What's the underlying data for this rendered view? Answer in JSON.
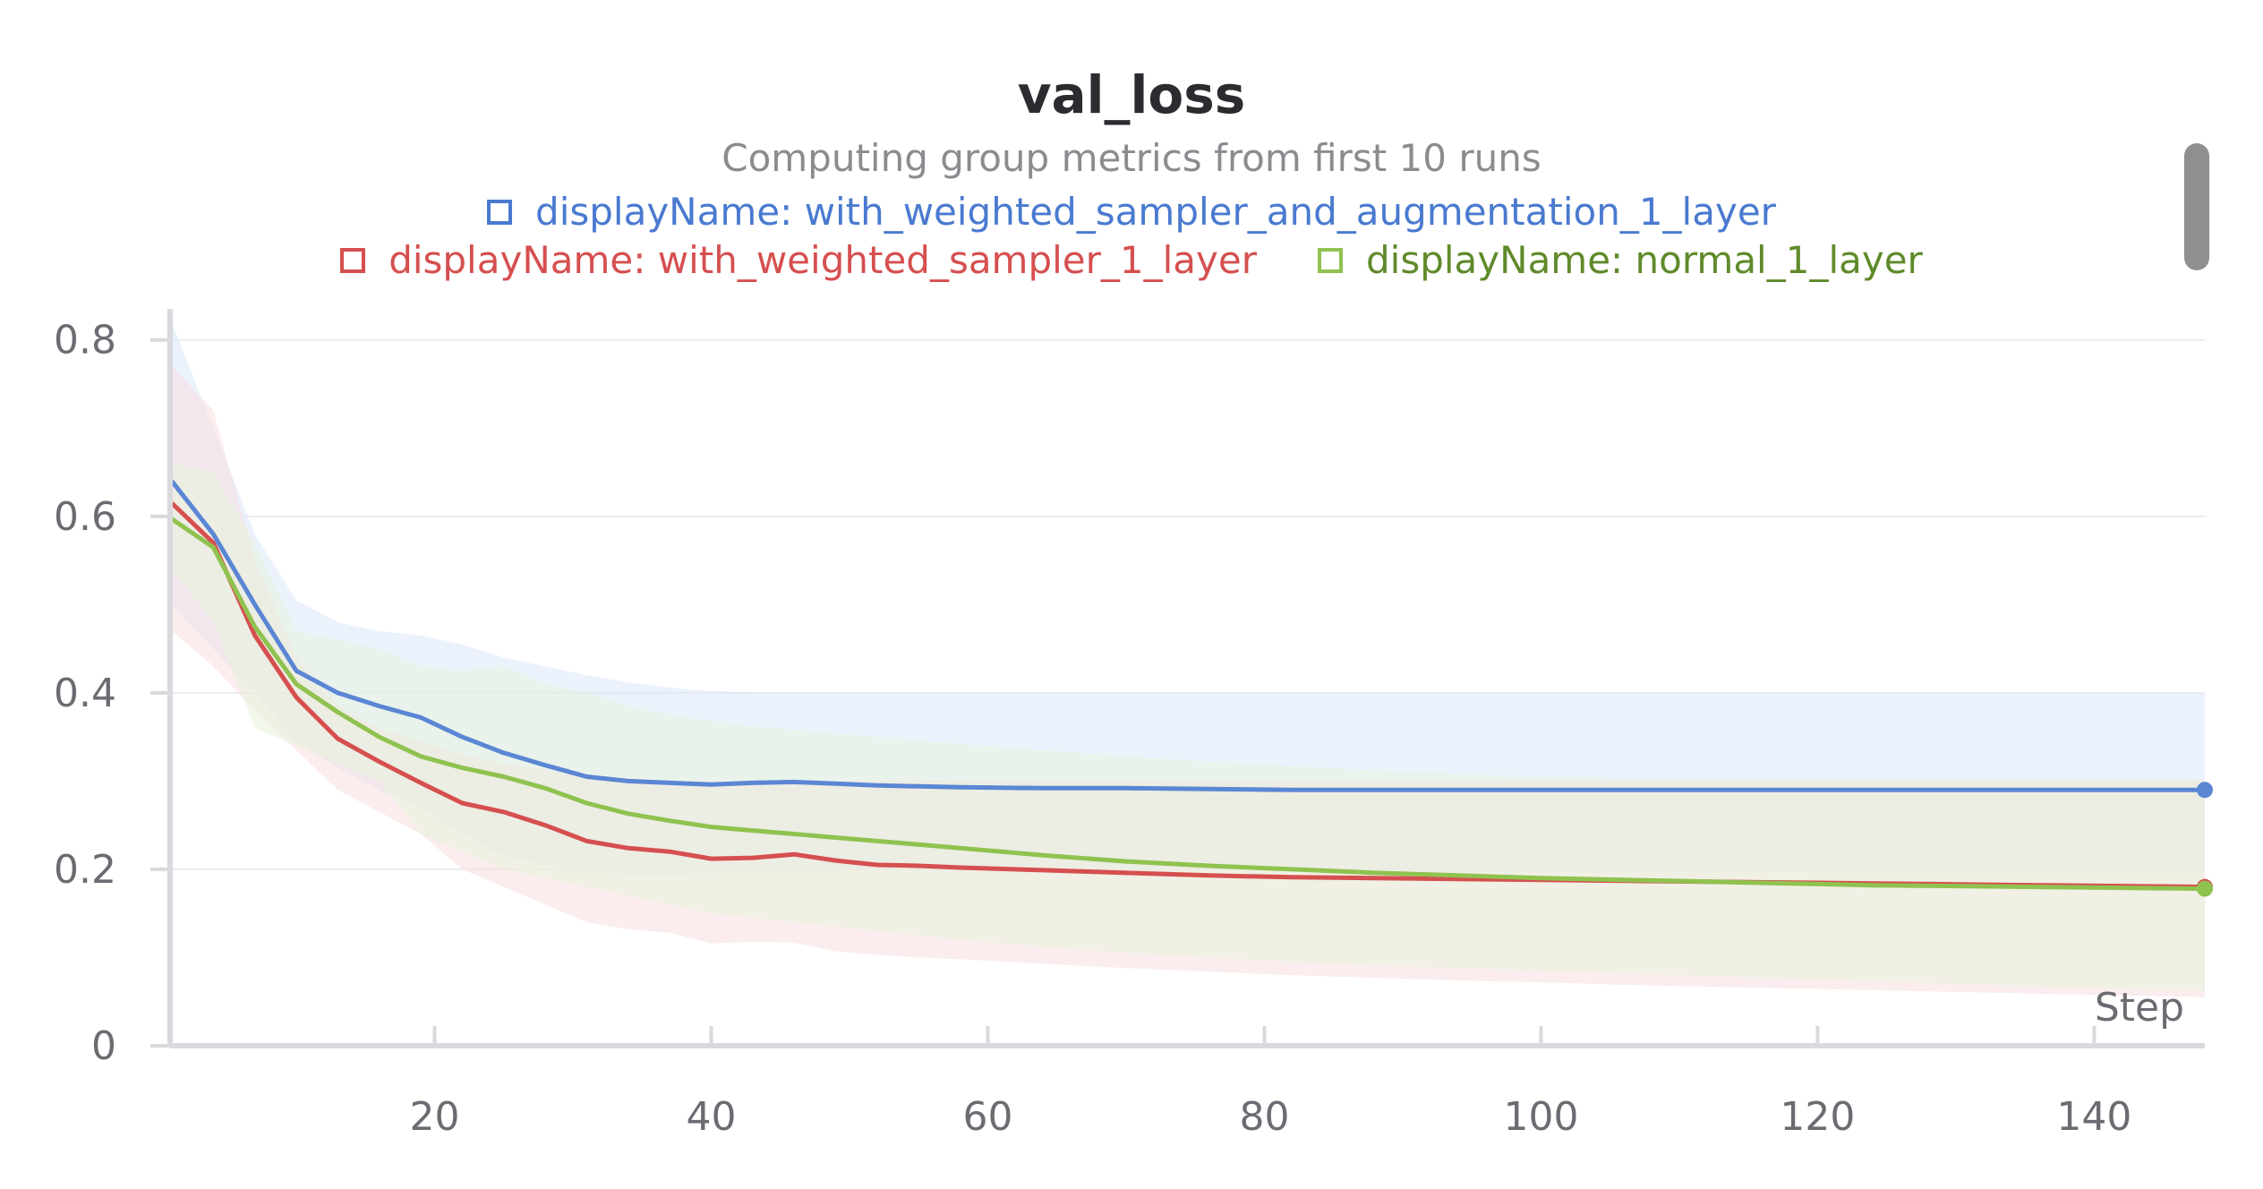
{
  "chart_data": {
    "type": "line",
    "title": "val_loss",
    "subtitle": "Computing group metrics from first 10 runs",
    "xlabel": "Step",
    "ylabel": "",
    "xlim": [
      1,
      148
    ],
    "ylim": [
      0,
      0.82
    ],
    "xticks": [
      20,
      40,
      60,
      80,
      100,
      120,
      140
    ],
    "yticks": [
      0,
      0.2,
      0.4,
      0.6,
      0.8
    ],
    "ytick_labels": [
      "0",
      "0.2",
      "0.4",
      "0.6",
      "0.8"
    ],
    "grid": "horizontal",
    "legend_position": "top",
    "series": [
      {
        "name": "displayName: with_weighted_sampler_and_augmentation_1_layer",
        "color": "#5a86d4",
        "band_color": "#dde7f9",
        "x": [
          1,
          4,
          7,
          10,
          13,
          16,
          19,
          22,
          25,
          28,
          31,
          34,
          37,
          40,
          43,
          46,
          49,
          52,
          55,
          58,
          64,
          70,
          76,
          82,
          88,
          94,
          100,
          106,
          112,
          118,
          124,
          130,
          136,
          142,
          148
        ],
        "mean": [
          0.64,
          0.58,
          0.5,
          0.425,
          0.4,
          0.385,
          0.372,
          0.35,
          0.332,
          0.318,
          0.305,
          0.3,
          0.298,
          0.296,
          0.298,
          0.299,
          0.297,
          0.295,
          0.294,
          0.293,
          0.292,
          0.292,
          0.291,
          0.29,
          0.29,
          0.29,
          0.29,
          0.29,
          0.29,
          0.29,
          0.29,
          0.29,
          0.29,
          0.29,
          0.29
        ],
        "upper": [
          0.82,
          0.7,
          0.58,
          0.505,
          0.48,
          0.47,
          0.465,
          0.455,
          0.44,
          0.43,
          0.42,
          0.412,
          0.406,
          0.402,
          0.401,
          0.4,
          0.4,
          0.4,
          0.4,
          0.4,
          0.4,
          0.4,
          0.4,
          0.4,
          0.4,
          0.4,
          0.4,
          0.4,
          0.4,
          0.4,
          0.4,
          0.4,
          0.4,
          0.4,
          0.4
        ],
        "lower": [
          0.5,
          0.45,
          0.4,
          0.345,
          0.315,
          0.29,
          0.27,
          0.24,
          0.215,
          0.205,
          0.198,
          0.195,
          0.195,
          0.196,
          0.198,
          0.2,
          0.2,
          0.2,
          0.2,
          0.2,
          0.2,
          0.2,
          0.2,
          0.2,
          0.2,
          0.2,
          0.2,
          0.2,
          0.2,
          0.2,
          0.2,
          0.2,
          0.2,
          0.2,
          0.2
        ]
      },
      {
        "name": "displayName: with_weighted_sampler_1_layer",
        "color": "#d64f4f",
        "band_color": "#f8dede",
        "x": [
          1,
          4,
          7,
          10,
          13,
          16,
          19,
          22,
          25,
          28,
          31,
          34,
          37,
          40,
          43,
          46,
          49,
          52,
          55,
          58,
          64,
          70,
          76,
          82,
          88,
          94,
          100,
          106,
          112,
          118,
          124,
          130,
          136,
          142,
          148
        ],
        "mean": [
          0.615,
          0.57,
          0.465,
          0.395,
          0.348,
          0.322,
          0.298,
          0.275,
          0.265,
          0.25,
          0.232,
          0.224,
          0.22,
          0.212,
          0.213,
          0.217,
          0.21,
          0.205,
          0.204,
          0.202,
          0.199,
          0.196,
          0.193,
          0.191,
          0.19,
          0.189,
          0.188,
          0.187,
          0.186,
          0.185,
          0.184,
          0.183,
          0.182,
          0.181,
          0.18
        ],
        "upper": [
          0.77,
          0.72,
          0.55,
          0.44,
          0.385,
          0.36,
          0.345,
          0.33,
          0.32,
          0.312,
          0.305,
          0.301,
          0.3,
          0.3,
          0.3,
          0.3,
          0.3,
          0.3,
          0.3,
          0.3,
          0.3,
          0.3,
          0.3,
          0.3,
          0.3,
          0.3,
          0.3,
          0.3,
          0.3,
          0.3,
          0.3,
          0.3,
          0.3,
          0.3,
          0.3
        ],
        "lower": [
          0.47,
          0.43,
          0.38,
          0.335,
          0.29,
          0.265,
          0.24,
          0.2,
          0.18,
          0.16,
          0.14,
          0.132,
          0.128,
          0.116,
          0.118,
          0.117,
          0.107,
          0.103,
          0.1,
          0.098,
          0.093,
          0.088,
          0.084,
          0.08,
          0.077,
          0.074,
          0.072,
          0.069,
          0.067,
          0.065,
          0.063,
          0.061,
          0.059,
          0.057,
          0.055
        ]
      },
      {
        "name": "displayName: normal_1_layer",
        "color": "#8fc24f",
        "legend_text_color": "#5f8a2a",
        "band_color": "#e8f2dc",
        "x": [
          1,
          4,
          7,
          10,
          13,
          16,
          19,
          22,
          25,
          28,
          31,
          34,
          37,
          40,
          43,
          46,
          49,
          52,
          55,
          58,
          64,
          70,
          76,
          82,
          88,
          94,
          100,
          106,
          112,
          118,
          124,
          130,
          136,
          142,
          148
        ],
        "mean": [
          0.597,
          0.565,
          0.475,
          0.41,
          0.378,
          0.35,
          0.328,
          0.315,
          0.305,
          0.292,
          0.275,
          0.263,
          0.255,
          0.248,
          0.244,
          0.24,
          0.236,
          0.232,
          0.228,
          0.224,
          0.216,
          0.209,
          0.204,
          0.2,
          0.196,
          0.193,
          0.19,
          0.188,
          0.186,
          0.184,
          0.182,
          0.181,
          0.18,
          0.179,
          0.178
        ],
        "upper": [
          0.66,
          0.65,
          0.57,
          0.47,
          0.46,
          0.45,
          0.43,
          0.425,
          0.43,
          0.41,
          0.4,
          0.385,
          0.375,
          0.368,
          0.362,
          0.358,
          0.354,
          0.35,
          0.346,
          0.342,
          0.335,
          0.328,
          0.322,
          0.317,
          0.312,
          0.308,
          0.305,
          0.303,
          0.302,
          0.302,
          0.302,
          0.302,
          0.302,
          0.302,
          0.302
        ],
        "lower": [
          0.54,
          0.48,
          0.36,
          0.34,
          0.32,
          0.3,
          0.24,
          0.22,
          0.2,
          0.19,
          0.18,
          0.17,
          0.16,
          0.15,
          0.145,
          0.14,
          0.135,
          0.13,
          0.125,
          0.12,
          0.112,
          0.105,
          0.1,
          0.095,
          0.091,
          0.088,
          0.085,
          0.082,
          0.079,
          0.076,
          0.073,
          0.07,
          0.067,
          0.064,
          0.062
        ]
      }
    ]
  },
  "colors": {
    "axis": "#d9d9de",
    "grid": "#ececef",
    "tick_text": "#6b6b72",
    "title": "#2b2b30",
    "subtitle": "#8b8b90",
    "scrollbar": "#8f8f91"
  }
}
